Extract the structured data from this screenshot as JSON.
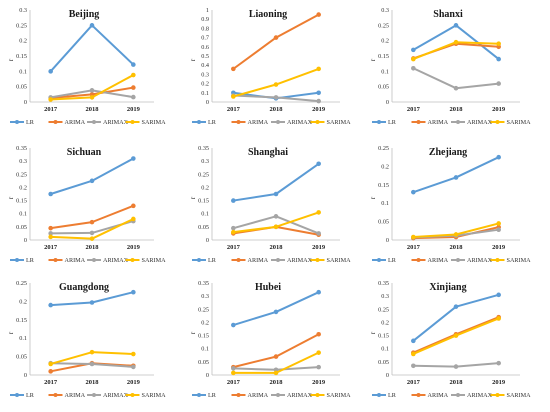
{
  "colors": {
    "LR": "#5b9bd5",
    "ARIMA": "#ed7d31",
    "ARIMAX": "#a5a5a5",
    "SARIMA": "#ffc000",
    "axis": "#bfbfbf"
  },
  "chart_data": [
    {
      "type": "line",
      "title": "Beijing",
      "ylabel": "r",
      "categories": [
        "2017",
        "2018",
        "2019"
      ],
      "ylim": [
        0,
        0.3
      ],
      "yticks": [
        "0",
        "0.05",
        "0.1",
        "0.15",
        "0.2",
        "0.25",
        "0.3"
      ],
      "series": [
        {
          "name": "LR",
          "values": [
            0.1,
            0.25,
            0.122
          ]
        },
        {
          "name": "ARIMA",
          "values": [
            0.013,
            0.025,
            0.047
          ]
        },
        {
          "name": "ARIMAX",
          "values": [
            0.015,
            0.038,
            0.016
          ]
        },
        {
          "name": "SARIMA",
          "values": [
            0.008,
            0.015,
            0.088
          ]
        }
      ]
    },
    {
      "type": "line",
      "title": "Liaoning",
      "ylabel": "r",
      "categories": [
        "2017",
        "2018",
        "2019"
      ],
      "ylim": [
        0,
        1
      ],
      "yticks": [
        "0",
        "0.1",
        "0.2",
        "0.3",
        "0.4",
        "0.5",
        "0.6",
        "0.7",
        "0.8",
        "0.9",
        "1"
      ],
      "series": [
        {
          "name": "LR",
          "values": [
            0.1,
            0.04,
            0.1
          ]
        },
        {
          "name": "ARIMA",
          "values": [
            0.36,
            0.7,
            0.95
          ]
        },
        {
          "name": "ARIMAX",
          "values": [
            0.07,
            0.05,
            0.01
          ]
        },
        {
          "name": "SARIMA",
          "values": [
            0.06,
            0.19,
            0.36
          ]
        }
      ]
    },
    {
      "type": "line",
      "title": "Shanxi",
      "ylabel": "r",
      "categories": [
        "2017",
        "2018",
        "2019"
      ],
      "ylim": [
        0,
        0.3
      ],
      "yticks": [
        "0",
        "0.05",
        "0.1",
        "0.15",
        "0.2",
        "0.25",
        "0.3"
      ],
      "series": [
        {
          "name": "LR",
          "values": [
            0.17,
            0.25,
            0.14
          ]
        },
        {
          "name": "ARIMA",
          "values": [
            0.142,
            0.19,
            0.18
          ]
        },
        {
          "name": "ARIMAX",
          "values": [
            0.11,
            0.045,
            0.06
          ]
        },
        {
          "name": "SARIMA",
          "values": [
            0.14,
            0.195,
            0.19
          ]
        }
      ]
    },
    {
      "type": "line",
      "title": "Sichuan",
      "ylabel": "r",
      "categories": [
        "2017",
        "2018",
        "2019"
      ],
      "ylim": [
        0,
        0.35
      ],
      "yticks": [
        "0",
        "0.05",
        "0.1",
        "0.15",
        "0.2",
        "0.25",
        "0.3",
        "0.35"
      ],
      "series": [
        {
          "name": "LR",
          "values": [
            0.175,
            0.225,
            0.31
          ]
        },
        {
          "name": "ARIMA",
          "values": [
            0.045,
            0.068,
            0.13
          ]
        },
        {
          "name": "ARIMAX",
          "values": [
            0.025,
            0.027,
            0.072
          ]
        },
        {
          "name": "SARIMA",
          "values": [
            0.012,
            0.005,
            0.08
          ]
        }
      ]
    },
    {
      "type": "line",
      "title": "Shanghai",
      "ylabel": "r",
      "categories": [
        "2017",
        "2018",
        "2019"
      ],
      "ylim": [
        0,
        0.35
      ],
      "yticks": [
        "0",
        "0.05",
        "0.1",
        "0.15",
        "0.2",
        "0.25",
        "0.3",
        "0.35"
      ],
      "series": [
        {
          "name": "LR",
          "values": [
            0.15,
            0.175,
            0.29
          ]
        },
        {
          "name": "ARIMA",
          "values": [
            0.025,
            0.05,
            0.02
          ]
        },
        {
          "name": "ARIMAX",
          "values": [
            0.045,
            0.09,
            0.025
          ]
        },
        {
          "name": "SARIMA",
          "values": [
            0.03,
            0.05,
            0.105
          ]
        }
      ]
    },
    {
      "type": "line",
      "title": "Zhejiang",
      "ylabel": "r",
      "categories": [
        "2017",
        "2018",
        "2019"
      ],
      "ylim": [
        0,
        0.25
      ],
      "yticks": [
        "0",
        "0.05",
        "0.1",
        "0.15",
        "0.2",
        "0.25"
      ],
      "series": [
        {
          "name": "LR",
          "values": [
            0.13,
            0.17,
            0.225
          ]
        },
        {
          "name": "ARIMA",
          "values": [
            0.005,
            0.008,
            0.035
          ]
        },
        {
          "name": "ARIMAX",
          "values": [
            0.007,
            0.012,
            0.028
          ]
        },
        {
          "name": "SARIMA",
          "values": [
            0.008,
            0.015,
            0.045
          ]
        }
      ]
    },
    {
      "type": "line",
      "title": "Guangdong",
      "ylabel": "r",
      "categories": [
        "2017",
        "2018",
        "2019"
      ],
      "ylim": [
        0,
        0.25
      ],
      "yticks": [
        "0",
        "0.05",
        "0.1",
        "0.15",
        "0.2",
        "0.25"
      ],
      "series": [
        {
          "name": "LR",
          "values": [
            0.19,
            0.197,
            0.225
          ]
        },
        {
          "name": "ARIMA",
          "values": [
            0.01,
            0.032,
            0.025
          ]
        },
        {
          "name": "ARIMAX",
          "values": [
            0.032,
            0.03,
            0.022
          ]
        },
        {
          "name": "SARIMA",
          "values": [
            0.03,
            0.062,
            0.057
          ]
        }
      ]
    },
    {
      "type": "line",
      "title": "Hubei",
      "ylabel": "r",
      "categories": [
        "2017",
        "2018",
        "2019"
      ],
      "ylim": [
        0,
        0.35
      ],
      "yticks": [
        "0",
        "0.05",
        "0.1",
        "0.15",
        "0.2",
        "0.25",
        "0.3",
        "0.35"
      ],
      "series": [
        {
          "name": "LR",
          "values": [
            0.19,
            0.24,
            0.315
          ]
        },
        {
          "name": "ARIMA",
          "values": [
            0.03,
            0.07,
            0.155
          ]
        },
        {
          "name": "ARIMAX",
          "values": [
            0.025,
            0.02,
            0.03
          ]
        },
        {
          "name": "SARIMA",
          "values": [
            0.008,
            0.008,
            0.085
          ]
        }
      ]
    },
    {
      "type": "line",
      "title": "Xinjiang",
      "ylabel": "r",
      "categories": [
        "2017",
        "2018",
        "2019"
      ],
      "ylim": [
        0,
        0.35
      ],
      "yticks": [
        "0",
        "0.05",
        "0.1",
        "0.15",
        "0.2",
        "0.25",
        "0.3",
        "0.35"
      ],
      "series": [
        {
          "name": "LR",
          "values": [
            0.13,
            0.26,
            0.305
          ]
        },
        {
          "name": "ARIMA",
          "values": [
            0.085,
            0.155,
            0.22
          ]
        },
        {
          "name": "ARIMAX",
          "values": [
            0.035,
            0.032,
            0.045
          ]
        },
        {
          "name": "SARIMA",
          "values": [
            0.08,
            0.15,
            0.215
          ]
        }
      ]
    }
  ]
}
